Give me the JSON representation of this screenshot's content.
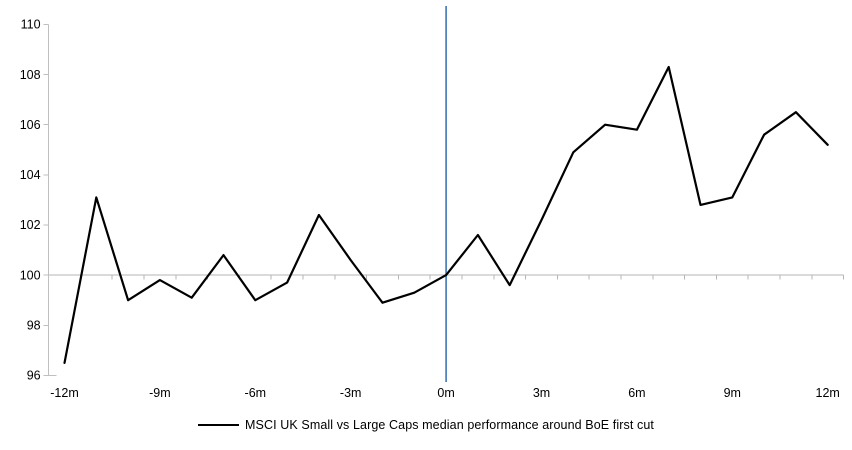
{
  "chart_data": {
    "type": "line",
    "title": "",
    "legend": "MSCI UK Small vs Large Caps median performance around BoE first cut",
    "xlabel": "",
    "ylabel": "",
    "x": [
      -12,
      -11,
      -10,
      -9,
      -8,
      -7,
      -6,
      -5,
      -4,
      -3,
      -2,
      -1,
      0,
      1,
      2,
      3,
      4,
      5,
      6,
      7,
      8,
      9,
      10,
      11,
      12
    ],
    "series": [
      {
        "name": "MSCI UK Small vs Large Caps median performance around BoE first cut",
        "values": [
          96.5,
          103.1,
          99.0,
          99.8,
          99.1,
          100.8,
          99.0,
          99.7,
          102.4,
          100.6,
          98.9,
          99.3,
          100.0,
          101.6,
          99.6,
          102.2,
          104.9,
          106.0,
          105.8,
          108.3,
          102.8,
          103.1,
          105.6,
          106.5,
          105.2
        ]
      }
    ],
    "ylim": [
      96,
      110
    ],
    "y_ticks": [
      96,
      98,
      100,
      102,
      104,
      106,
      108,
      110
    ],
    "x_tick_labels": [
      "-12m",
      "-9m",
      "-6m",
      "-3m",
      "0m",
      "3m",
      "6m",
      "9m",
      "12m"
    ],
    "x_tick_months": [
      -12,
      -9,
      -6,
      -3,
      0,
      3,
      6,
      9,
      12
    ],
    "baseline_value": 100,
    "event_line_month": 0,
    "grid": "off",
    "legend_position": "bottom-center",
    "colors": {
      "series": "#000000",
      "event_line": "#4F81BD",
      "axis": "#BFBFBF",
      "baseline": "#B5B5B5",
      "text": "#000000"
    }
  }
}
